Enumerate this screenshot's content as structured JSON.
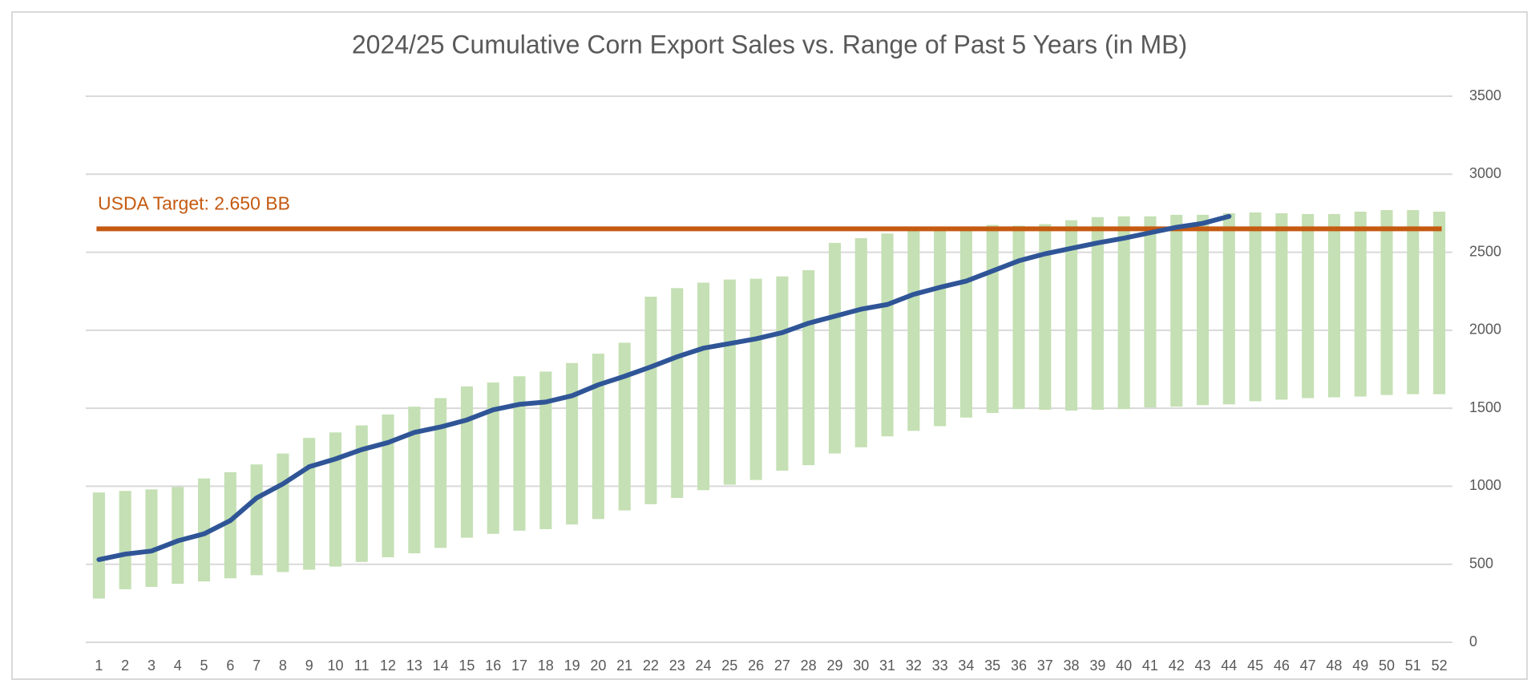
{
  "chart_data": {
    "type": "bar",
    "title": "2024/25 Cumulative Corn Export Sales vs. Range of Past 5 Years (in MB)",
    "categories": [
      1,
      2,
      3,
      4,
      5,
      6,
      7,
      8,
      9,
      10,
      11,
      12,
      13,
      14,
      15,
      16,
      17,
      18,
      19,
      20,
      21,
      22,
      23,
      24,
      25,
      26,
      27,
      28,
      29,
      30,
      31,
      32,
      33,
      34,
      35,
      36,
      37,
      38,
      39,
      40,
      41,
      42,
      43,
      44,
      45,
      46,
      47,
      48,
      49,
      50,
      51,
      52
    ],
    "range": {
      "color": "#c5e0b4",
      "low": [
        280,
        340,
        355,
        375,
        390,
        410,
        430,
        450,
        465,
        485,
        515,
        545,
        570,
        605,
        670,
        695,
        715,
        725,
        755,
        790,
        845,
        885,
        925,
        975,
        1010,
        1040,
        1100,
        1135,
        1210,
        1250,
        1320,
        1355,
        1385,
        1440,
        1470,
        1495,
        1490,
        1485,
        1490,
        1495,
        1505,
        1510,
        1520,
        1525,
        1545,
        1555,
        1565,
        1570,
        1575,
        1585,
        1590,
        1590
      ],
      "high": [
        960,
        970,
        980,
        995,
        1050,
        1090,
        1140,
        1210,
        1310,
        1345,
        1390,
        1460,
        1510,
        1565,
        1640,
        1665,
        1705,
        1735,
        1790,
        1850,
        1920,
        2215,
        2270,
        2305,
        2325,
        2330,
        2345,
        2385,
        2560,
        2590,
        2620,
        2640,
        2650,
        2660,
        2675,
        2670,
        2680,
        2705,
        2725,
        2730,
        2730,
        2740,
        2740,
        2750,
        2755,
        2750,
        2745,
        2745,
        2760,
        2770,
        2770,
        2760
      ]
    },
    "line": {
      "color": "#2f5597",
      "values": [
        530,
        565,
        585,
        650,
        695,
        780,
        925,
        1015,
        1125,
        1175,
        1235,
        1280,
        1345,
        1380,
        1425,
        1490,
        1525,
        1540,
        1580,
        1650,
        1705,
        1765,
        1830,
        1885,
        1915,
        1945,
        1985,
        2045,
        2090,
        2135,
        2165,
        2230,
        2275,
        2315,
        2380,
        2445,
        2490,
        2525,
        2560,
        2590,
        2625,
        2660,
        2685,
        2730
      ]
    },
    "target": {
      "value": 2650,
      "label": "USDA Target: 2.650 BB",
      "color": "#c55a11"
    },
    "ylim": [
      0,
      3500
    ],
    "yticks": [
      0,
      500,
      1000,
      1500,
      2000,
      2500,
      3000,
      3500
    ],
    "grid": true
  }
}
